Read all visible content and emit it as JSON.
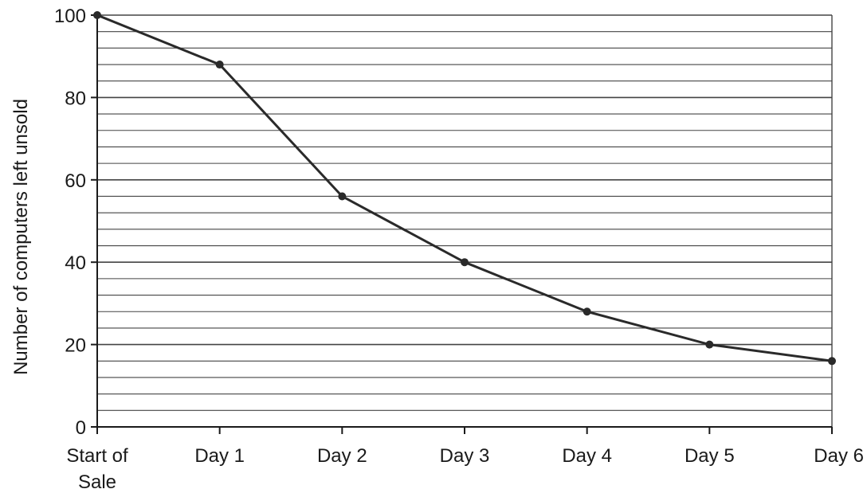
{
  "chart_data": {
    "type": "line",
    "title": "",
    "xlabel": "",
    "ylabel": "Number of computers left unsold",
    "categories": [
      [
        "Start of",
        "Sale"
      ],
      [
        "Day 1"
      ],
      [
        "Day 2"
      ],
      [
        "Day 3"
      ],
      [
        "Day 4"
      ],
      [
        "Day 5"
      ],
      [
        "Day 6"
      ]
    ],
    "values": [
      100,
      88,
      56,
      40,
      28,
      20,
      16
    ],
    "ylim": [
      0,
      100
    ],
    "yticks": [
      0,
      20,
      40,
      60,
      80,
      100
    ],
    "minor_grid_step": 4,
    "grid": true,
    "legend": "none",
    "colors": {
      "line": "#2a2a2a",
      "grid": "#444444",
      "axis": "#1a1a1a",
      "text": "#1a1a1a"
    }
  }
}
